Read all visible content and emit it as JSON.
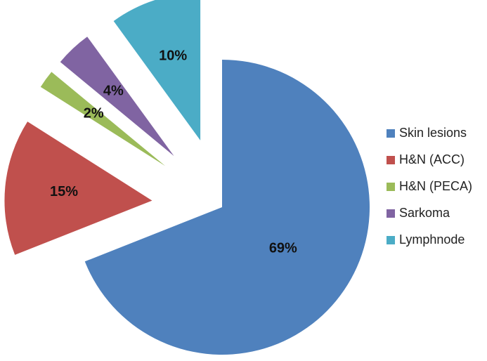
{
  "chart_data": {
    "type": "pie",
    "categories": [
      "Skin lesions",
      "H&N (ACC)",
      "H&N (PECA)",
      "Sarkoma",
      "Lymphnode"
    ],
    "values": [
      69,
      15,
      2,
      4,
      10
    ],
    "value_labels": [
      "69%",
      "15%",
      "2%",
      "4%",
      "10%"
    ],
    "colors": [
      "#4f81bd",
      "#c0504d",
      "#9bbb59",
      "#8064a2",
      "#4bacc6"
    ],
    "legend": "right"
  }
}
